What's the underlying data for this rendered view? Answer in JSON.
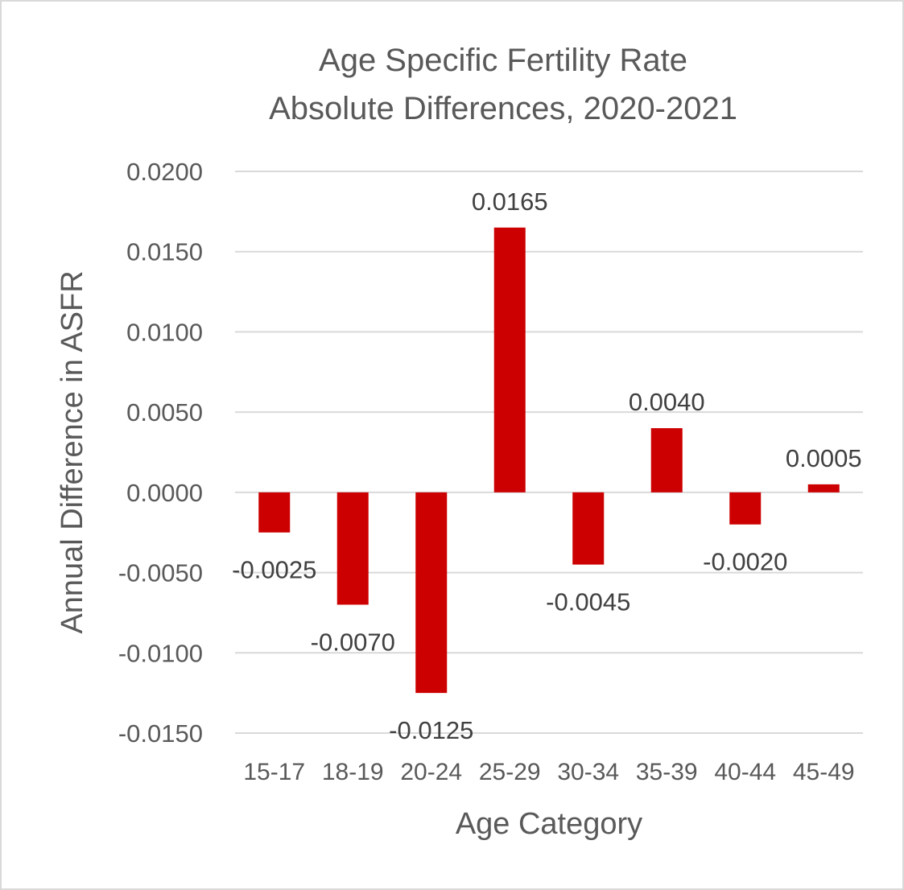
{
  "chart_data": {
    "type": "bar",
    "title": [
      "Age Specific Fertility Rate",
      "Absolute Differences, 2020-2021"
    ],
    "xlabel": "Age Category",
    "ylabel": "Annual Difference in ASFR",
    "categories": [
      "15-17",
      "18-19",
      "20-24",
      "25-29",
      "30-34",
      "35-39",
      "40-44",
      "45-49"
    ],
    "values": [
      -0.0025,
      -0.007,
      -0.0125,
      0.0165,
      -0.0045,
      0.004,
      -0.002,
      0.0005
    ],
    "data_labels": [
      "-0.0025",
      "-0.0070",
      "-0.0125",
      "0.0165",
      "-0.0045",
      "0.0040",
      "-0.0020",
      "0.0005"
    ],
    "ylim": [
      -0.015,
      0.02
    ],
    "yticks": [
      0.02,
      0.015,
      0.01,
      0.005,
      0.0,
      -0.005,
      -0.01,
      -0.015
    ],
    "ytick_labels": [
      "0.0200",
      "0.0150",
      "0.0100",
      "0.0050",
      "0.0000",
      "-0.0050",
      "-0.0100",
      "-0.0150"
    ],
    "grid": true,
    "legend": "none",
    "bar_color": "#cc0000",
    "gridline_color": "#d9d9d9",
    "text_color": "#595959"
  }
}
